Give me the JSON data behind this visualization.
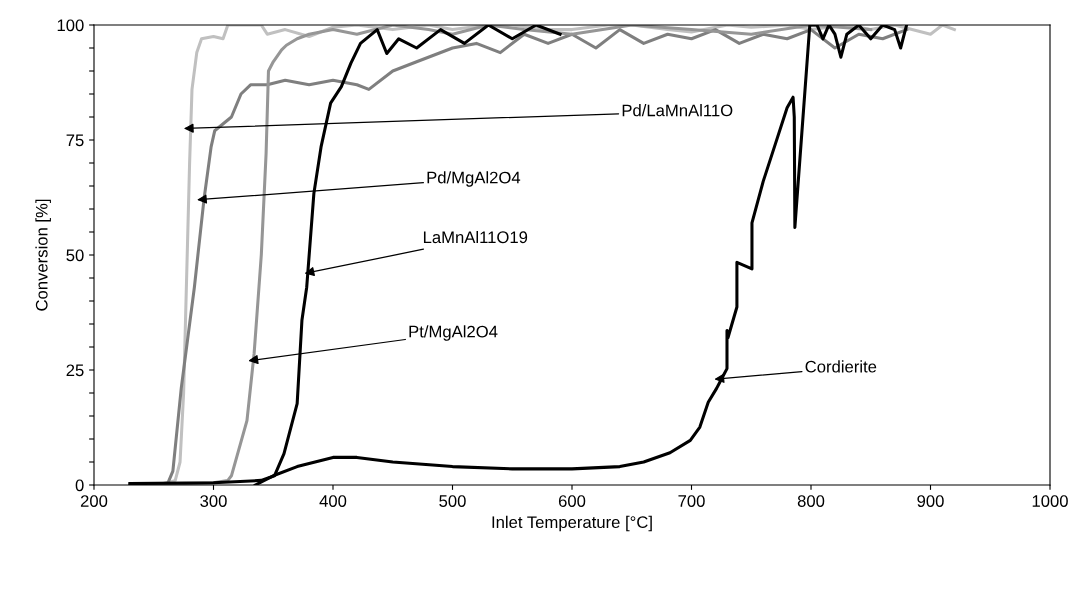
{
  "chart_data": {
    "type": "line",
    "xlabel": "Inlet Temperature [°C]",
    "ylabel": "Conversion [%]",
    "xlim": [
      200,
      1000
    ],
    "xticks": [
      200,
      300,
      400,
      500,
      600,
      700,
      800,
      900,
      1000
    ],
    "ylim": [
      0,
      100
    ],
    "yticks": [
      0,
      {
        "value": 5,
        "label": null
      },
      {
        "value": 10,
        "label": null
      },
      {
        "value": 15,
        "label": null
      },
      {
        "value": 20,
        "label": null
      },
      25,
      {
        "value": 30,
        "label": null
      },
      {
        "value": 35,
        "label": null
      },
      {
        "value": 40,
        "label": null
      },
      {
        "value": 45,
        "label": null
      },
      50,
      {
        "value": 55,
        "label": null
      },
      {
        "value": 60,
        "label": null
      },
      {
        "value": 65,
        "label": null
      },
      {
        "value": 70,
        "label": null
      },
      75,
      {
        "value": 80,
        "label": null
      },
      {
        "value": 85,
        "label": null
      },
      {
        "value": 90,
        "label": null
      },
      {
        "value": 95,
        "label": null
      },
      100
    ],
    "grid": false,
    "legend": false,
    "marker": "none",
    "line_style": "solid",
    "series": [
      {
        "color": "#c0c0c0",
        "x": [
          230,
          260,
          268,
          272,
          275,
          278,
          280,
          282,
          286,
          290,
          300,
          308,
          312,
          340,
          345,
          360,
          380,
          400,
          420,
          450,
          480,
          500,
          530,
          550,
          580,
          600,
          630,
          650,
          680,
          700,
          730,
          750,
          780,
          800,
          830,
          850,
          870,
          900,
          910,
          920
        ],
        "values": [
          0,
          0.3,
          1,
          5,
          20,
          50,
          70,
          86,
          94,
          97,
          97.5,
          97,
          100,
          100,
          98,
          99,
          97.5,
          99.5,
          100,
          99,
          100,
          99,
          100,
          100,
          99,
          99,
          100,
          100,
          99,
          98.5,
          100,
          99.5,
          100,
          99,
          100,
          99,
          100,
          98,
          100,
          99
        ]
      },
      {
        "color": "#7f7f7f",
        "x": [
          250,
          262,
          266,
          273,
          284,
          292,
          298,
          301,
          315,
          323,
          331,
          345,
          360,
          380,
          400,
          420,
          430,
          450,
          470,
          500,
          520,
          540,
          560,
          580,
          600,
          620,
          640,
          660,
          680,
          700,
          720,
          740,
          760,
          780,
          800,
          820,
          840,
          860,
          880
        ],
        "values": [
          0,
          0.5,
          3,
          21,
          43,
          62,
          73.5,
          77,
          80,
          85,
          87,
          87,
          88,
          87,
          88,
          87,
          86,
          90,
          92,
          95,
          96,
          94,
          98,
          96,
          98,
          95,
          99,
          96,
          98,
          97,
          99,
          96,
          98,
          97,
          99,
          95,
          98,
          97,
          99
        ]
      },
      {
        "color": "#969696",
        "x": [
          230,
          300,
          312,
          315,
          328,
          334,
          340,
          344,
          346,
          350,
          357,
          361,
          370,
          380,
          400,
          420,
          450,
          480,
          500,
          530,
          560,
          600,
          650,
          700,
          750,
          800,
          850
        ],
        "values": [
          0,
          0.5,
          1,
          2,
          14,
          28.6,
          50,
          72,
          90,
          92,
          94.6,
          95.6,
          97,
          98,
          99,
          98,
          100,
          99,
          98,
          100,
          99,
          98,
          100,
          99,
          98,
          100,
          99
        ]
      },
      {
        "color": "#000000",
        "x": [
          230,
          300,
          340,
          351,
          359,
          370,
          374,
          378,
          384,
          390,
          398,
          407,
          415,
          423,
          437,
          445,
          455,
          470,
          490,
          510,
          530,
          550,
          570,
          590
        ],
        "values": [
          0.3,
          0.5,
          1,
          2,
          6.8,
          17.7,
          35.8,
          43,
          63.4,
          73.5,
          83,
          86.6,
          91.7,
          96,
          99,
          93.8,
          97,
          95,
          99,
          96,
          100,
          97,
          100,
          98
        ]
      },
      {
        "color": "#000000",
        "x": [
          335,
          350,
          370,
          400,
          420,
          450,
          500,
          550,
          600,
          640,
          660,
          682,
          699,
          707,
          714,
          721,
          725,
          729.7,
          729.7,
          730.5,
          738,
          738,
          750.6,
          750.6,
          760,
          770,
          780,
          785,
          786,
          786.5,
          799,
          805,
          810,
          815,
          820,
          825,
          830,
          840,
          850,
          860,
          870,
          875,
          880
        ],
        "values": [
          0,
          2,
          4,
          6,
          6,
          5,
          4,
          3.5,
          3.5,
          4,
          5,
          7,
          9.7,
          12.6,
          18,
          21,
          23,
          25.3,
          33.6,
          32,
          38.7,
          48.4,
          47,
          57,
          66,
          74,
          82,
          84.3,
          80,
          56,
          100,
          100,
          97,
          100,
          98,
          93,
          98,
          100,
          97,
          100,
          99,
          95,
          100
        ]
      }
    ],
    "annotations": [
      {
        "text": "Pd/LaMnAl11O",
        "x": 281,
        "y": 77.5
      },
      {
        "text": "Pd/MgAl2O4",
        "x": 292,
        "y": 62
      },
      {
        "text": "LaMnAl11O19",
        "x": 382,
        "y": 46
      },
      {
        "text": "Pt/MgAl2O4",
        "x": 335,
        "y": 27
      },
      {
        "text": "Cordierite",
        "x": 725,
        "y": 23
      }
    ]
  }
}
